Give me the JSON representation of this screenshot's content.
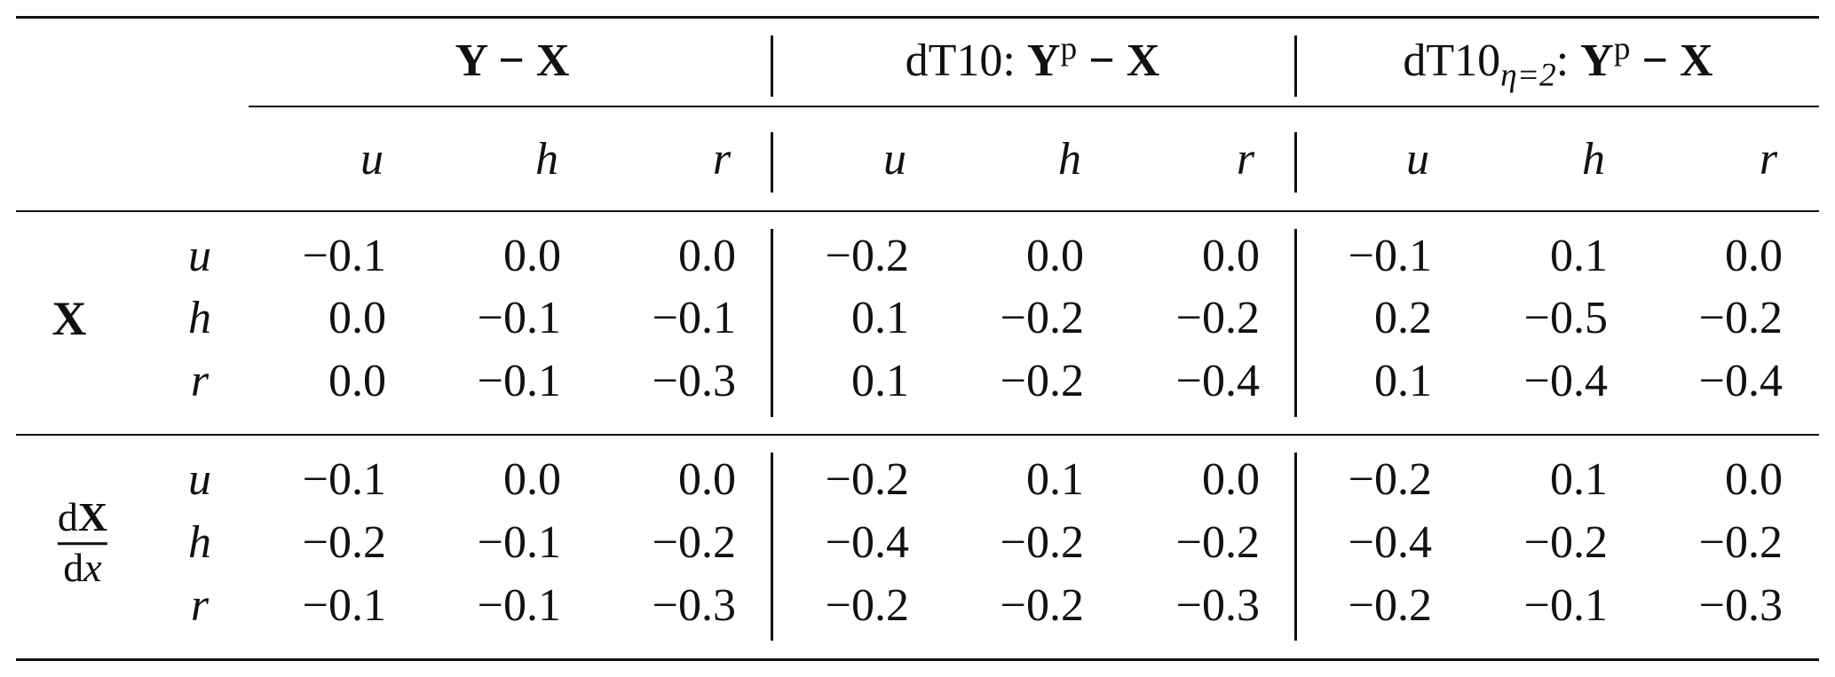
{
  "table": {
    "groups": [
      {
        "label": "Y − X"
      },
      {
        "prefix": "dT10: ",
        "label": "Y",
        "sup": "p",
        "suffix": " − X"
      },
      {
        "prefix": "dT10",
        "sub": "η=2",
        "colon": ": ",
        "label": "Y",
        "sup": "p",
        "suffix": " − X"
      }
    ],
    "col_vars": [
      "u",
      "h",
      "r"
    ],
    "sections": [
      {
        "label": "X",
        "rows": [
          {
            "var": "u",
            "values": [
              "−0.1",
              "0.0",
              "0.0",
              "−0.2",
              "0.0",
              "0.0",
              "−0.1",
              "0.1",
              "0.0"
            ]
          },
          {
            "var": "h",
            "values": [
              "0.0",
              "−0.1",
              "−0.1",
              "0.1",
              "−0.2",
              "−0.2",
              "0.2",
              "−0.5",
              "−0.2"
            ]
          },
          {
            "var": "r",
            "values": [
              "0.0",
              "−0.1",
              "−0.3",
              "0.1",
              "−0.2",
              "−0.4",
              "0.1",
              "−0.4",
              "−0.4"
            ]
          }
        ]
      },
      {
        "label_num_d": "d",
        "label_num_X": "X",
        "label_den_d": "d",
        "label_den_x": "x",
        "rows": [
          {
            "var": "u",
            "values": [
              "−0.1",
              "0.0",
              "0.0",
              "−0.2",
              "0.1",
              "0.0",
              "−0.2",
              "0.1",
              "0.0"
            ]
          },
          {
            "var": "h",
            "values": [
              "−0.2",
              "−0.1",
              "−0.2",
              "−0.4",
              "−0.2",
              "−0.2",
              "−0.4",
              "−0.2",
              "−0.2"
            ]
          },
          {
            "var": "r",
            "values": [
              "−0.1",
              "−0.1",
              "−0.3",
              "−0.2",
              "−0.2",
              "−0.3",
              "−0.2",
              "−0.1",
              "−0.3"
            ]
          }
        ]
      }
    ]
  }
}
